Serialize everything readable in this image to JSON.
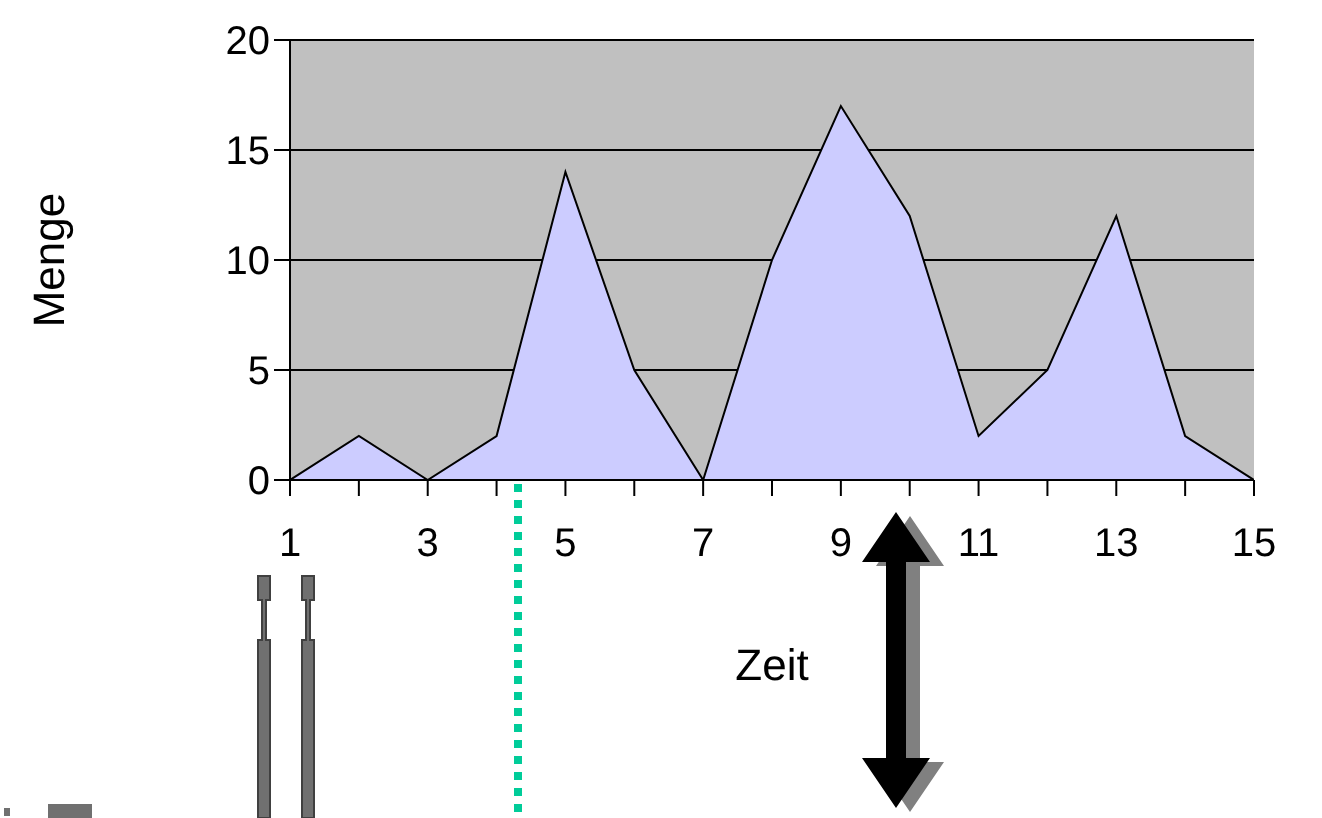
{
  "chart_data": {
    "type": "area",
    "xlabel": "Zeit",
    "ylabel": "Menge",
    "x": [
      1,
      2,
      3,
      4,
      5,
      6,
      7,
      8,
      9,
      10,
      11,
      12,
      13,
      14,
      15
    ],
    "series": [
      {
        "color": "#ccccff",
        "values": [
          0,
          2,
          0,
          2,
          14,
          5,
          0,
          10,
          17,
          12,
          2,
          5,
          12,
          2,
          0
        ]
      }
    ],
    "xlim": [
      1,
      15
    ],
    "xticks": [
      1,
      {
        "value": 2,
        "label": null
      },
      3,
      {
        "value": 4,
        "label": null
      },
      5,
      {
        "value": 6,
        "label": null
      },
      7,
      {
        "value": 8,
        "label": null
      },
      9,
      {
        "value": 10,
        "label": null
      },
      11,
      {
        "value": 12,
        "label": null
      },
      13,
      {
        "value": 14,
        "label": null
      },
      15
    ],
    "ylim": [
      0,
      20
    ],
    "yticks": [
      0,
      5,
      10,
      15,
      20
    ],
    "grid": "y"
  }
}
